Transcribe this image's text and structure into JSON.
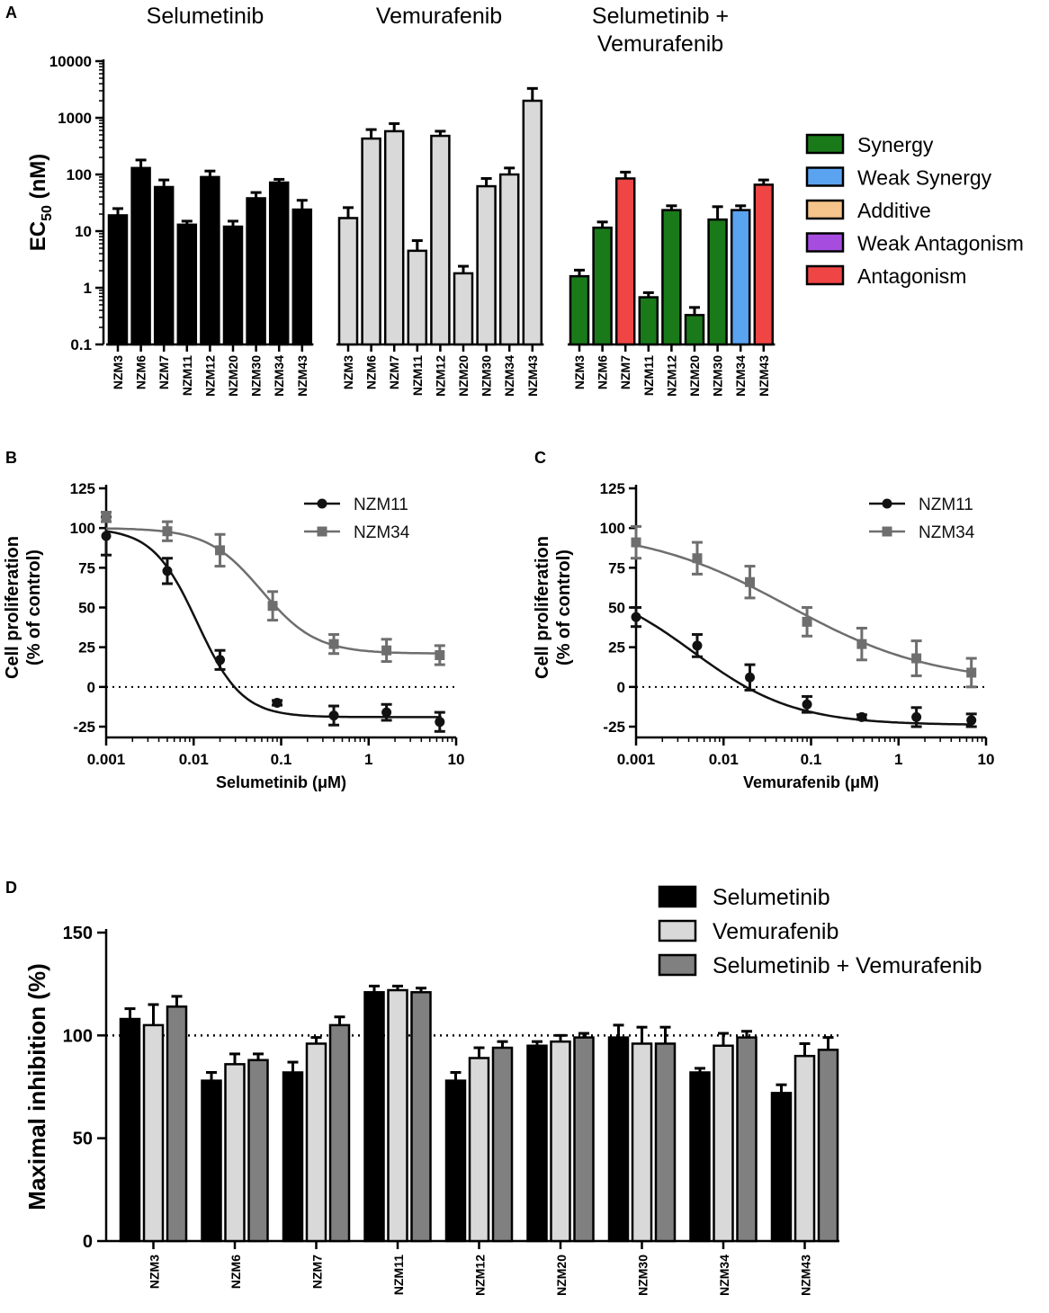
{
  "colors": {
    "black": "#000000",
    "light": "#d9d9d9",
    "dark": "#808080",
    "synergy": "#1a7a1a",
    "weak_synergy": "#5aa3f0",
    "additive": "#f5c48a",
    "weak_antagonism": "#a64de0",
    "antagonism": "#f04545",
    "nzm11": "#111111",
    "nzm34": "#6e6e6e"
  },
  "chart_data": [
    {
      "panel": "A",
      "type": "bar",
      "yscale": "log",
      "ylabel_main": "EC",
      "ylabel_sub": "50",
      "ylabel_unit": " (nM)",
      "ylim": [
        0.1,
        10000
      ],
      "yticks": [
        "0.1",
        "1",
        "10",
        "100",
        "1000",
        "10000"
      ],
      "categories": [
        "NZM3",
        "NZM6",
        "NZM7",
        "NZM11",
        "NZM12",
        "NZM20",
        "NZM30",
        "NZM34",
        "NZM43"
      ],
      "groups": [
        {
          "title": [
            "Selumetinib"
          ],
          "fill": "black",
          "values": [
            19,
            130,
            60,
            13,
            90,
            12,
            38,
            72,
            24
          ],
          "errors": [
            25,
            180,
            80,
            15,
            115,
            15,
            48,
            82,
            35
          ]
        },
        {
          "title": [
            "Vemurafenib"
          ],
          "fill": "light",
          "values": [
            17,
            430,
            580,
            4.5,
            480,
            1.8,
            62,
            100,
            2000
          ],
          "errors": [
            26,
            620,
            790,
            6.8,
            580,
            2.4,
            85,
            130,
            3300
          ]
        },
        {
          "title": [
            "Selumetinib +",
            "Vemurafenib"
          ],
          "fill": "interaction",
          "values": [
            1.6,
            11.5,
            85,
            0.68,
            23.5,
            0.33,
            16,
            23.5,
            66
          ],
          "errors": [
            2.05,
            14.5,
            110,
            0.82,
            28,
            0.45,
            27,
            28,
            80
          ],
          "interaction": [
            "Synergy",
            "Synergy",
            "Antagonism",
            "Synergy",
            "Synergy",
            "Synergy",
            "Synergy",
            "Weak Synergy",
            "Antagonism"
          ]
        }
      ],
      "legend": [
        "Synergy",
        "Weak Synergy",
        "Additive",
        "Weak Antagonism",
        "Antagonism"
      ]
    },
    {
      "panel": "B",
      "type": "line",
      "xscale": "log",
      "xlabel": "Selumetinib (μM)",
      "ylabel": [
        "Cell proliferation",
        "(% of control)"
      ],
      "xlim": [
        0.001,
        10
      ],
      "ylim": [
        -25,
        125
      ],
      "xticks": [
        "0.001",
        "0.01",
        "0.1",
        "1",
        "10"
      ],
      "yticks": [
        "-25",
        "0",
        "25",
        "50",
        "75",
        "100",
        "125"
      ],
      "reference_line_y": 0,
      "series": [
        {
          "name": "NZM11",
          "marker": "circle",
          "x": [
            0.001,
            0.005,
            0.02,
            0.09,
            0.4,
            1.6,
            6.5
          ],
          "y": [
            95,
            73,
            17,
            -10,
            -18,
            -16,
            -22
          ],
          "err": [
            12,
            8,
            6,
            1.5,
            6,
            5,
            6
          ],
          "fit": {
            "top": 100,
            "bottom": -19,
            "ec50": 0.011,
            "hill": 1.7
          }
        },
        {
          "name": "NZM34",
          "marker": "square",
          "x": [
            0.001,
            0.005,
            0.02,
            0.08,
            0.4,
            1.6,
            6.5
          ],
          "y": [
            107,
            98,
            86,
            51,
            27,
            23,
            20
          ],
          "err": [
            3,
            6,
            10,
            9,
            6,
            7,
            6
          ],
          "fit": {
            "top": 100,
            "bottom": 21,
            "ec50": 0.06,
            "hill": 1.4
          }
        }
      ]
    },
    {
      "panel": "C",
      "type": "line",
      "xscale": "log",
      "xlabel": "Vemurafenib (μM)",
      "ylabel": [
        "Cell proliferation",
        "(% of control)"
      ],
      "xlim": [
        0.001,
        10
      ],
      "ylim": [
        -25,
        125
      ],
      "xticks": [
        "0.001",
        "0.01",
        "0.1",
        "1",
        "10"
      ],
      "yticks": [
        "-25",
        "0",
        "25",
        "50",
        "75",
        "100",
        "125"
      ],
      "reference_line_y": 0,
      "series": [
        {
          "name": "NZM11",
          "marker": "circle",
          "x": [
            0.001,
            0.005,
            0.02,
            0.09,
            0.38,
            1.6,
            6.8
          ],
          "y": [
            44,
            26,
            6,
            -11,
            -19,
            -19,
            -21
          ],
          "err": [
            6,
            7,
            8,
            5,
            1.5,
            6,
            4
          ],
          "fit": {
            "top": 68,
            "bottom": -24,
            "ec50": 0.0045,
            "hill": 0.75
          }
        },
        {
          "name": "NZM34",
          "marker": "square",
          "x": [
            0.001,
            0.005,
            0.02,
            0.09,
            0.38,
            1.6,
            6.8
          ],
          "y": [
            91,
            81,
            66,
            41,
            27,
            18,
            9
          ],
          "err": [
            10,
            10,
            10,
            9,
            10,
            11,
            9
          ],
          "fit": {
            "top": 100,
            "bottom": 2,
            "ec50": 0.055,
            "hill": 0.52
          }
        }
      ]
    },
    {
      "panel": "D",
      "type": "bar",
      "ylabel": "Maximal inhibition (%)",
      "ylim": [
        0,
        150
      ],
      "yticks": [
        "0",
        "50",
        "100",
        "150"
      ],
      "reference_line_y": 100,
      "categories": [
        "NZM3",
        "NZM6",
        "NZM7",
        "NZM11",
        "NZM12",
        "NZM20",
        "NZM30",
        "NZM34",
        "NZM43"
      ],
      "series": [
        {
          "name": "Selumetinib",
          "fill": "black",
          "values": [
            108,
            78,
            82,
            121,
            78,
            95,
            99,
            82,
            72
          ],
          "err": [
            5,
            4,
            5,
            3,
            4,
            2,
            6,
            2,
            4
          ]
        },
        {
          "name": "Vemurafenib",
          "fill": "light",
          "values": [
            105,
            86,
            96,
            122,
            89,
            97,
            96,
            95,
            90
          ],
          "err": [
            10,
            5,
            3,
            2,
            5,
            3,
            8,
            6,
            6
          ]
        },
        {
          "name": "Selumetinib + Vemurafenib",
          "fill": "dark",
          "values": [
            114,
            88,
            105,
            121,
            94,
            99,
            96,
            99,
            93
          ],
          "err": [
            5,
            3,
            4,
            2,
            3,
            2,
            8,
            3,
            6
          ]
        }
      ]
    }
  ]
}
